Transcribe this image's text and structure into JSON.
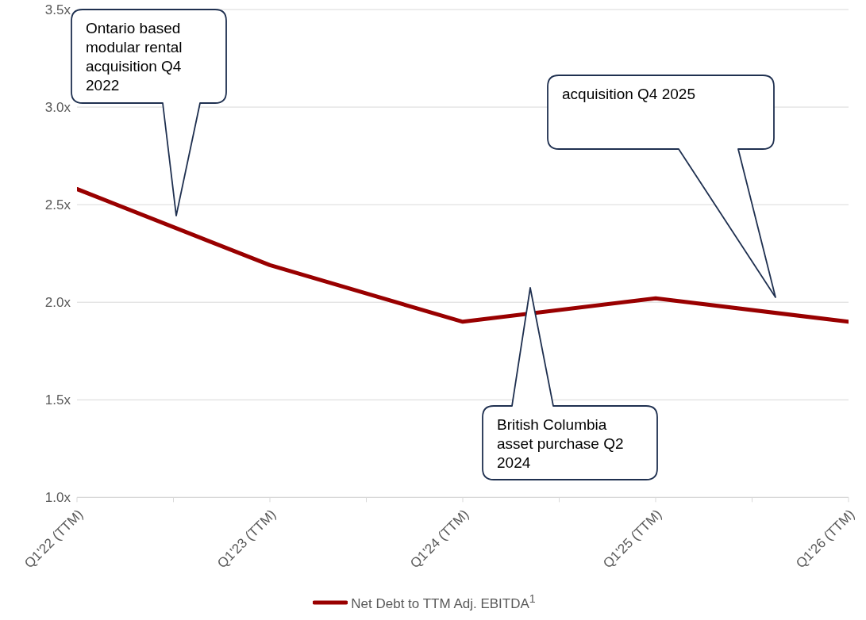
{
  "chart_data": {
    "type": "line",
    "categories": [
      "Q1'22 (TTM)",
      null,
      "Q1'23 (TTM)",
      null,
      "Q1'24 (TTM)",
      null,
      "Q1'25 (TTM)",
      null,
      "Q1'26 (TTM)"
    ],
    "series": [
      {
        "name": "Net Debt to TTM Adj. EBITDA$^{1}$",
        "color": "#990000",
        "values": [
          2.58,
          null,
          2.19,
          null,
          1.9,
          null,
          2.02,
          null,
          1.9
        ]
      }
    ],
    "ylim": [
      1,
      3.5
    ],
    "yticks": [
      {
        "value": 1,
        "label": "1.0x"
      },
      {
        "value": 1.5,
        "label": "1.5x"
      },
      {
        "value": 2,
        "label": "2.0x"
      },
      {
        "value": 2.5,
        "label": "2.5x"
      },
      {
        "value": 3,
        "label": "3.0x"
      },
      {
        "value": 3.5,
        "label": "3.5x"
      }
    ],
    "grid": "y",
    "legend": "bottom",
    "marker": "none",
    "line_style": "solid",
    "annotations": [
      "Ontario based modular rental acquisition Q4 2022",
      "acquisition Q4 2025",
      "British Columbia asset purchase Q2 2024"
    ]
  }
}
